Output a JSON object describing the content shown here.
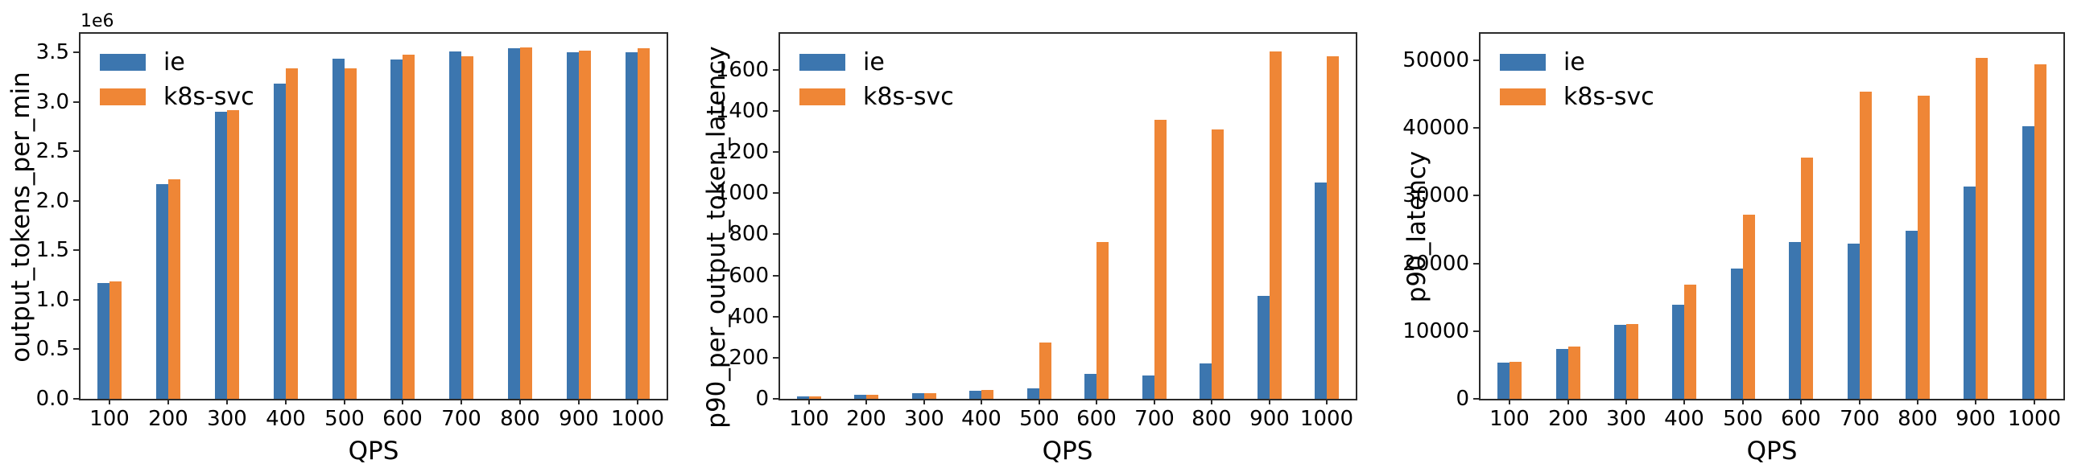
{
  "figure": {
    "background": "#ffffff",
    "axis_color": "#2b2b2b",
    "text_color": "#000000",
    "series_colors": {
      "ie": "#3c76af",
      "k8s_svc": "#ef8636"
    }
  },
  "chart_data": [
    {
      "type": "bar",
      "title": "",
      "xlabel": "QPS",
      "ylabel": "output_tokens_per_min",
      "offset_text": "1e6",
      "grid": false,
      "legend_position": "upper left",
      "categories": [
        100,
        200,
        300,
        400,
        500,
        600,
        700,
        800,
        900,
        1000
      ],
      "series": [
        {
          "name": "ie",
          "color": "#3c76af",
          "values": [
            1170000,
            2170000,
            2900000,
            3190000,
            3440000,
            3430000,
            3510000,
            3540000,
            3505000,
            3500000
          ]
        },
        {
          "name": "k8s-svc",
          "color": "#ef8636",
          "values": [
            1190000,
            2220000,
            2915000,
            3340000,
            3340000,
            3480000,
            3465000,
            3550000,
            3520000,
            3540000
          ]
        }
      ],
      "ylim": [
        0,
        3690000
      ],
      "ytick_values": [
        0,
        500000,
        1000000,
        1500000,
        2000000,
        2500000,
        3000000,
        3500000
      ],
      "ytick_labels": [
        "0.0",
        "0.5",
        "1.0",
        "1.5",
        "2.0",
        "2.5",
        "3.0",
        "3.5"
      ]
    },
    {
      "type": "bar",
      "title": "",
      "xlabel": "QPS",
      "ylabel": "p90_per_output_token_latency",
      "offset_text": "",
      "grid": false,
      "legend_position": "upper left",
      "categories": [
        100,
        200,
        300,
        400,
        500,
        600,
        700,
        800,
        900,
        1000
      ],
      "series": [
        {
          "name": "ie",
          "color": "#3c76af",
          "values": [
            10,
            18,
            27,
            40,
            52,
            120,
            112,
            172,
            500,
            1050
          ]
        },
        {
          "name": "k8s-svc",
          "color": "#ef8636",
          "values": [
            10,
            18,
            27,
            44,
            272,
            762,
            1355,
            1310,
            1690,
            1665
          ]
        }
      ],
      "ylim": [
        0,
        1775
      ],
      "ytick_values": [
        0,
        200,
        400,
        600,
        800,
        1000,
        1200,
        1400,
        1600
      ],
      "ytick_labels": [
        "0",
        "200",
        "400",
        "600",
        "800",
        "1000",
        "1200",
        "1400",
        "1600"
      ]
    },
    {
      "type": "bar",
      "title": "",
      "xlabel": "QPS",
      "ylabel": "p90_latency",
      "offset_text": "",
      "grid": false,
      "legend_position": "upper left",
      "categories": [
        100,
        200,
        300,
        400,
        500,
        600,
        700,
        800,
        900,
        1000
      ],
      "series": [
        {
          "name": "ie",
          "color": "#3c76af",
          "values": [
            5300,
            7400,
            10900,
            13900,
            19200,
            23100,
            22900,
            24800,
            31300,
            40200
          ]
        },
        {
          "name": "k8s-svc",
          "color": "#ef8636",
          "values": [
            5500,
            7700,
            11100,
            16900,
            27200,
            35600,
            45400,
            44800,
            50300,
            49400
          ]
        }
      ],
      "ylim": [
        0,
        53900
      ],
      "ytick_values": [
        0,
        10000,
        20000,
        30000,
        40000,
        50000
      ],
      "ytick_labels": [
        "0",
        "10000",
        "20000",
        "30000",
        "40000",
        "50000"
      ]
    }
  ]
}
